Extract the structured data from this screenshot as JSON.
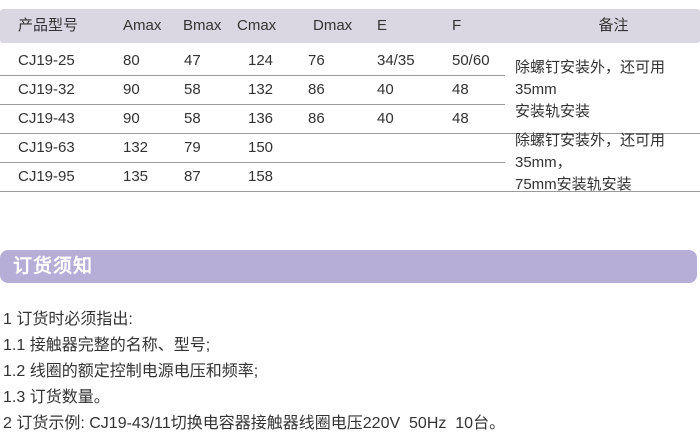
{
  "table": {
    "headers": [
      "产品型号",
      "Amax",
      "Bmax",
      "Cmax",
      "Dmax",
      "E",
      "F",
      "备注"
    ],
    "rows": [
      {
        "model": "CJ19-25",
        "amax": "80",
        "bmax": "47",
        "cmax": "124",
        "dmax": "76",
        "e": "34/35",
        "f": "50/60"
      },
      {
        "model": "CJ19-32",
        "amax": "90",
        "bmax": "58",
        "cmax": "132",
        "dmax": "86",
        "e": "40",
        "f": "48"
      },
      {
        "model": "CJ19-43",
        "amax": "90",
        "bmax": "58",
        "cmax": "136",
        "dmax": "86",
        "e": "40",
        "f": "48"
      },
      {
        "model": "CJ19-63",
        "amax": "132",
        "bmax": "79",
        "cmax": "150",
        "dmax": "",
        "e": "",
        "f": ""
      },
      {
        "model": "CJ19-95",
        "amax": "135",
        "bmax": "87",
        "cmax": "158",
        "dmax": "",
        "e": "",
        "f": ""
      }
    ],
    "remarks": [
      {
        "text": "除螺钉安装外，还可用35mm\n安装轨安装",
        "applies_to_rows": "CJ19-25 / CJ19-32 / CJ19-43"
      },
      {
        "text": "除螺钉安装外，还可用35mm，\n75mm安装轨安装",
        "applies_to_rows": "CJ19-63 / CJ19-95"
      }
    ]
  },
  "section_banner": {
    "title": "订货须知"
  },
  "notes": {
    "lines": [
      "1 订货时必须指出:",
      "1.1 接触器完整的名称、型号;",
      "1.2 线圈的额定控制电源电压和频率;",
      "1.3 订货数量。",
      "2 订货示例: CJ19-43/11切换电容器接触器线圈电压220V  50Hz  10台。"
    ]
  },
  "colors": {
    "table_header_bg": "#dad7e2",
    "banner_bg": "#b7aed8",
    "text": "#333333",
    "rule_line": "#9a9a9a"
  }
}
